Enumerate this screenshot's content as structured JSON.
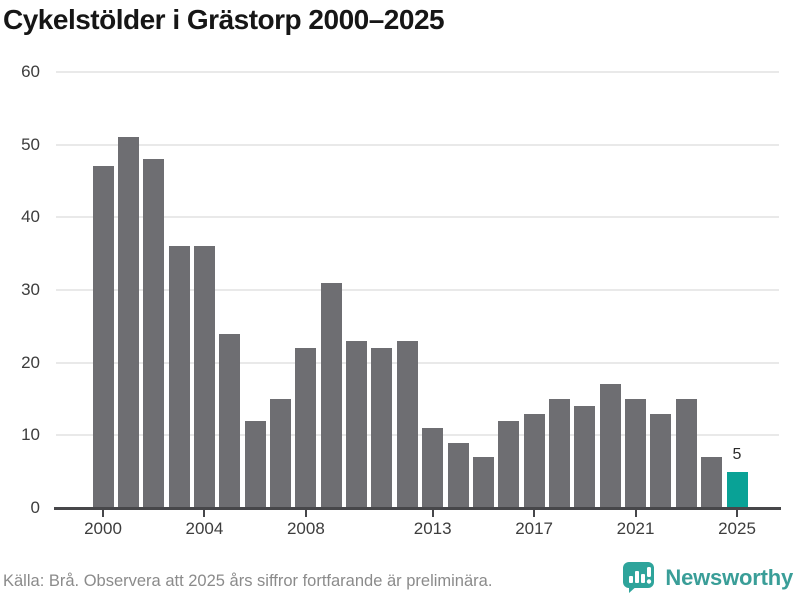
{
  "title": "Cykelstölder i Grästorp 2000–2025",
  "footer": {
    "source_note": "Källa: Brå. Observera att 2025 års siffror fortfarande är preliminära.",
    "brand_name": "Newsworthy"
  },
  "colors": {
    "bar": "#6e6e72",
    "highlight": "#09a296",
    "gridline": "#e9e9e9",
    "axis": "#47474a",
    "brand_teal": "#3a9e98",
    "icon_teal": "#2ea49b"
  },
  "chart_data": {
    "type": "bar",
    "title": "Cykelstölder i Grästorp 2000–2025",
    "categories": [
      2000,
      2001,
      2002,
      2003,
      2004,
      2005,
      2006,
      2007,
      2008,
      2009,
      2010,
      2011,
      2012,
      2013,
      2014,
      2015,
      2016,
      2017,
      2018,
      2019,
      2020,
      2021,
      2022,
      2023,
      2024,
      2025
    ],
    "values": [
      47,
      51,
      48,
      36,
      36,
      24,
      12,
      15,
      22,
      31,
      23,
      22,
      23,
      11,
      9,
      7,
      12,
      13,
      15,
      14,
      17,
      15,
      13,
      15,
      7,
      5
    ],
    "xlabel": "",
    "ylabel": "",
    "ylim": [
      0,
      60
    ],
    "y_ticks": [
      0,
      10,
      20,
      30,
      40,
      50,
      60
    ],
    "x_tick_labels": [
      "2000",
      "2004",
      "2008",
      "2013",
      "2017",
      "2021",
      "2025"
    ],
    "x_tick_indices": [
      0,
      4,
      8,
      13,
      17,
      21,
      25
    ],
    "highlighted_index": 25,
    "highlighted_value_label": "5",
    "grid": "horizontal",
    "legend": "none"
  }
}
